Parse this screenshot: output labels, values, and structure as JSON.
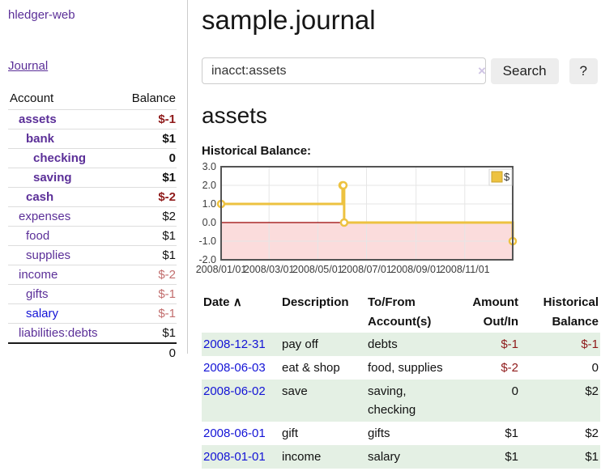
{
  "app": {
    "brand": "hledger-web"
  },
  "colors": {
    "link_purple": "#5b2f98",
    "link_blue": "#1313d6",
    "negative_strong": "#8f1a1a",
    "negative_soft": "#c26e6e",
    "row_stripe_green": "#e4f0e4",
    "series_gold": "#edc240",
    "negative_region_pink": "#fbdcdc",
    "zero_line_red": "#990000"
  },
  "sidebar": {
    "journal_link": "Journal",
    "accounts": {
      "header_account": "Account",
      "header_balance": "Balance",
      "rows": [
        {
          "name": "assets",
          "balance": "$-1",
          "name_class": "d1 plink bold",
          "bal_class": "bold neg-strong"
        },
        {
          "name": "bank",
          "balance": "$1",
          "name_class": "d2 plink bold",
          "bal_class": "bold"
        },
        {
          "name": "checking",
          "balance": "0",
          "name_class": "d3 plink bold",
          "bal_class": "bold"
        },
        {
          "name": "saving",
          "balance": "$1",
          "name_class": "d3 plink bold",
          "bal_class": "bold"
        },
        {
          "name": "cash",
          "balance": "$-2",
          "name_class": "d2 plink bold",
          "bal_class": "bold neg-strong"
        },
        {
          "name": "expenses",
          "balance": "$2",
          "name_class": "d1 plink",
          "bal_class": ""
        },
        {
          "name": "food",
          "balance": "$1",
          "name_class": "d2 plink",
          "bal_class": ""
        },
        {
          "name": "supplies",
          "balance": "$1",
          "name_class": "d2 plink",
          "bal_class": ""
        },
        {
          "name": "income",
          "balance": "$-2",
          "name_class": "d1 plink",
          "bal_class": "neg-soft"
        },
        {
          "name": "gifts",
          "balance": "$-1",
          "name_class": "d2 plink",
          "bal_class": "neg-soft"
        },
        {
          "name": "salary",
          "balance": "$-1",
          "name_class": "d2 blink",
          "bal_class": "neg-soft"
        },
        {
          "name": "liabilities:debts",
          "balance": "$1",
          "name_class": "d1 plink",
          "bal_class": ""
        }
      ],
      "total": "0"
    }
  },
  "main": {
    "title": "sample.journal",
    "search": {
      "value": "inacct:assets",
      "clear_icon": "×",
      "button": "Search",
      "help": "?"
    },
    "account_heading": "assets",
    "chart_title": "Historical Balance:"
  },
  "chart_data": {
    "type": "line",
    "step": true,
    "title": "Historical Balance:",
    "series": [
      {
        "name": "$",
        "color": "#edc240",
        "points": [
          {
            "date": "2008-01-01",
            "day": 0,
            "value": 1
          },
          {
            "date": "2008-06-01",
            "day": 152,
            "value": 2
          },
          {
            "date": "2008-06-02",
            "day": 153,
            "value": 2
          },
          {
            "date": "2008-06-03",
            "day": 154,
            "value": 0
          },
          {
            "date": "2008-12-31",
            "day": 365,
            "value": -1
          }
        ]
      }
    ],
    "x_ticks": [
      {
        "label": "2008/01/01",
        "day": 0
      },
      {
        "label": "2008/03/01",
        "day": 60
      },
      {
        "label": "2008/05/01",
        "day": 121
      },
      {
        "label": "2008/07/01",
        "day": 182
      },
      {
        "label": "2008/09/01",
        "day": 244
      },
      {
        "label": "2008/11/01",
        "day": 305
      }
    ],
    "y_ticks": [
      3.0,
      2.0,
      1.0,
      0.0,
      -1.0,
      -2.0
    ],
    "ylim": [
      -2,
      3
    ],
    "xlim_days": [
      0,
      365
    ],
    "grid": true,
    "legend_position": "top-right",
    "legend_label": "$"
  },
  "register": {
    "headers": {
      "date": "Date",
      "sort_caret": "∧",
      "description": "Description",
      "accounts": "To/From Account(s)",
      "amount": "Amount Out/In",
      "balance": "Historical Balance"
    },
    "rows": [
      {
        "date": "2008-12-31",
        "description": "pay off",
        "accounts": "debts",
        "amount": "$-1",
        "balance": "$-1",
        "row_class": "striped",
        "amount_class": "neg-strong",
        "balance_class": "neg-strong"
      },
      {
        "date": "2008-06-03",
        "description": "eat & shop",
        "accounts": "food, supplies",
        "amount": "$-2",
        "balance": "0",
        "row_class": "",
        "amount_class": "neg-strong",
        "balance_class": ""
      },
      {
        "date": "2008-06-02",
        "description": "save",
        "accounts": "saving, checking",
        "amount": "0",
        "balance": "$2",
        "row_class": "striped",
        "amount_class": "",
        "balance_class": ""
      },
      {
        "date": "2008-06-01",
        "description": "gift",
        "accounts": "gifts",
        "amount": "$1",
        "balance": "$2",
        "row_class": "",
        "amount_class": "",
        "balance_class": ""
      },
      {
        "date": "2008-01-01",
        "description": "income",
        "accounts": "salary",
        "amount": "$1",
        "balance": "$1",
        "row_class": "striped",
        "amount_class": "",
        "balance_class": ""
      }
    ]
  }
}
